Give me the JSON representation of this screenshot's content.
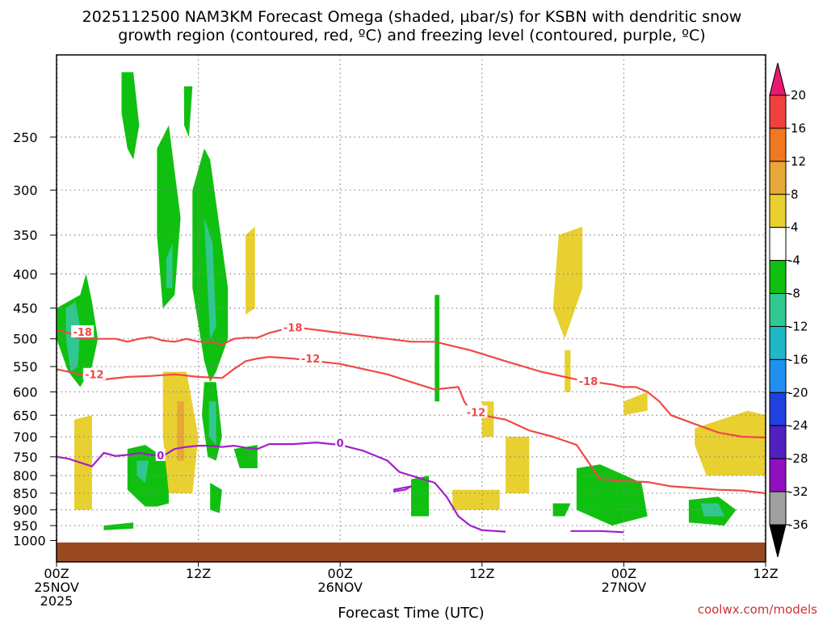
{
  "title_line1": "2025112500 NAM3KM Forecast Omega (shaded, µbar/s) for KSBN with dendritic snow",
  "title_line2": "growth region (contoured, red, ºC) and freezing level (contoured, purple, ºC)",
  "credit": "coolwx.com/models",
  "colors": {
    "isotherm": "#f04848",
    "freezing_level": "#a020c8",
    "ground": "#9a4a22",
    "grid": "#888888"
  },
  "chart_data": {
    "type": "heatmap",
    "title": "2025112500 NAM3KM Forecast Omega (shaded, µbar/s) for KSBN with dendritic snow growth region (contoured, red, ºC) and freezing level (contoured, purple, ºC)",
    "xlabel": "Forecast Time (UTC)",
    "ylabel": "",
    "x_range_hours": [
      0,
      60
    ],
    "y_range_hpa": [
      1000,
      200
    ],
    "y_scale": "log",
    "grid": true,
    "x_ticks": [
      {
        "hour": 0,
        "line1": "00Z",
        "line2": "25NOV",
        "line3": "2025"
      },
      {
        "hour": 12,
        "line1": "12Z",
        "line2": "",
        "line3": ""
      },
      {
        "hour": 24,
        "line1": "00Z",
        "line2": "26NOV",
        "line3": ""
      },
      {
        "hour": 36,
        "line1": "12Z",
        "line2": "",
        "line3": ""
      },
      {
        "hour": 48,
        "line1": "00Z",
        "line2": "27NOV",
        "line3": ""
      },
      {
        "hour": 60,
        "line1": "12Z",
        "line2": "",
        "line3": ""
      }
    ],
    "y_ticks": [
      250,
      300,
      350,
      400,
      450,
      500,
      550,
      600,
      650,
      700,
      750,
      800,
      850,
      900,
      950,
      1000
    ],
    "colorbar": {
      "unit": "µbar/s",
      "labels": [
        "20",
        "16",
        "12",
        "8",
        "4",
        "-4",
        "-8",
        "-12",
        "-16",
        "-20",
        "-24",
        "-28",
        "-32",
        "-36"
      ],
      "colors": [
        "#e8196e",
        "#f04040",
        "#f07820",
        "#e8a838",
        "#e8d030",
        "#ffffff",
        "#10c010",
        "#30c890",
        "#20b8c8",
        "#2090f0",
        "#2040e0",
        "#5020c0",
        "#9010c0",
        "#a0a0a0",
        "#000000"
      ]
    },
    "omega_regions": [
      {
        "category": "-8",
        "t": [
          0.0,
          2.0,
          2.5,
          3.0,
          3.5,
          3.0,
          2.0,
          1.0,
          0.0
        ],
        "p": [
          450,
          430,
          400,
          440,
          500,
          550,
          590,
          560,
          500
        ]
      },
      {
        "category": "-12",
        "t": [
          0.8,
          1.6,
          2.0,
          1.8,
          1.2,
          0.8
        ],
        "p": [
          450,
          440,
          480,
          550,
          560,
          500
        ]
      },
      {
        "category": "-8",
        "t": [
          5.5,
          6.5,
          7.0,
          6.5,
          6.0,
          5.5
        ],
        "p": [
          200,
          200,
          240,
          270,
          260,
          230
        ]
      },
      {
        "category": "-8",
        "t": [
          8.5,
          9.5,
          10.5,
          10.0,
          9.0,
          8.5
        ],
        "p": [
          260,
          240,
          330,
          430,
          450,
          350
        ]
      },
      {
        "category": "-12",
        "t": [
          9.3,
          9.8,
          9.8,
          9.3
        ],
        "p": [
          380,
          360,
          420,
          420
        ]
      },
      {
        "category": "-8",
        "t": [
          10.8,
          11.5,
          11.2,
          10.8
        ],
        "p": [
          210,
          210,
          250,
          240
        ]
      },
      {
        "category": "-8",
        "t": [
          11.5,
          12.5,
          13.0,
          14.5,
          14.5,
          13.5,
          13.0,
          12.5,
          11.5
        ],
        "p": [
          300,
          260,
          270,
          420,
          500,
          560,
          580,
          540,
          420
        ]
      },
      {
        "category": "-12",
        "t": [
          12.5,
          13.2,
          13.5,
          13.0
        ],
        "p": [
          330,
          360,
          480,
          500
        ]
      },
      {
        "category": "-8",
        "t": [
          12.5,
          13.5,
          14.0,
          13.5,
          12.8,
          12.3
        ],
        "p": [
          580,
          580,
          700,
          760,
          750,
          650
        ]
      },
      {
        "category": "-12",
        "t": [
          12.9,
          13.5,
          13.5,
          12.9
        ],
        "p": [
          620,
          620,
          720,
          700
        ]
      },
      {
        "category": "-8",
        "t": [
          6.0,
          7.5,
          9.5,
          9.5,
          8.5,
          7.5,
          6.0
        ],
        "p": [
          730,
          720,
          760,
          880,
          890,
          890,
          840
        ]
      },
      {
        "category": "-12",
        "t": [
          6.8,
          7.8,
          7.5,
          6.8
        ],
        "p": [
          760,
          760,
          820,
          800
        ]
      },
      {
        "category": "-8",
        "t": [
          13.0,
          14.0,
          13.8,
          13.0
        ],
        "p": [
          820,
          840,
          910,
          900
        ]
      },
      {
        "category": "-8",
        "t": [
          15.0,
          17.0,
          17.0,
          15.5
        ],
        "p": [
          730,
          720,
          780,
          780
        ]
      },
      {
        "category": "-8",
        "t": [
          4.0,
          6.5,
          6.5,
          4.0
        ],
        "p": [
          950,
          940,
          960,
          965
        ]
      },
      {
        "category": "-8",
        "t": [
          32.0,
          32.4,
          32.4,
          32.0
        ],
        "p": [
          430,
          430,
          620,
          620
        ]
      },
      {
        "category": "-8",
        "t": [
          30.0,
          31.5,
          31.5,
          30.0
        ],
        "p": [
          810,
          800,
          920,
          920
        ]
      },
      {
        "category": "-8",
        "t": [
          44.0,
          46.0,
          49.5,
          50.0,
          47.0,
          44.0
        ],
        "p": [
          780,
          770,
          820,
          920,
          950,
          900
        ]
      },
      {
        "category": "-8",
        "t": [
          53.5,
          56.0,
          57.5,
          56.5,
          53.5
        ],
        "p": [
          870,
          860,
          900,
          950,
          940
        ]
      },
      {
        "category": "-12",
        "t": [
          54.5,
          56.0,
          56.5,
          54.8
        ],
        "p": [
          880,
          880,
          920,
          920
        ]
      },
      {
        "category": "-8",
        "t": [
          42.0,
          43.5,
          43.0,
          42.0
        ],
        "p": [
          880,
          880,
          920,
          920
        ]
      },
      {
        "category": "4",
        "t": [
          1.5,
          3.0,
          3.0,
          1.5
        ],
        "p": [
          660,
          650,
          900,
          900
        ]
      },
      {
        "category": "4",
        "t": [
          9.0,
          11.0,
          12.0,
          11.5,
          9.5,
          9.0
        ],
        "p": [
          560,
          560,
          700,
          850,
          850,
          700
        ]
      },
      {
        "category": "8",
        "t": [
          10.2,
          10.8,
          10.8,
          10.2
        ],
        "p": [
          620,
          620,
          760,
          760
        ]
      },
      {
        "category": "4",
        "t": [
          16.0,
          16.8,
          16.8,
          16.0
        ],
        "p": [
          350,
          340,
          450,
          460
        ]
      },
      {
        "category": "4",
        "t": [
          42.5,
          44.5,
          44.5,
          43.0,
          42.0
        ],
        "p": [
          350,
          340,
          420,
          500,
          450
        ]
      },
      {
        "category": "4",
        "t": [
          43.0,
          43.5,
          43.5,
          43.0
        ],
        "p": [
          520,
          520,
          600,
          600
        ]
      },
      {
        "category": "4",
        "t": [
          48.0,
          50.0,
          50.0,
          48.0
        ],
        "p": [
          620,
          600,
          640,
          650
        ]
      },
      {
        "category": "4",
        "t": [
          54.0,
          58.5,
          60.0,
          60.0,
          55.0,
          54.0
        ],
        "p": [
          680,
          640,
          650,
          800,
          800,
          720
        ]
      },
      {
        "category": "4",
        "t": [
          36.0,
          37.0,
          37.0,
          36.0
        ],
        "p": [
          620,
          620,
          700,
          700
        ]
      },
      {
        "category": "4",
        "t": [
          38.0,
          40.0,
          40.0,
          38.0
        ],
        "p": [
          700,
          700,
          850,
          850
        ]
      },
      {
        "category": "4",
        "t": [
          33.5,
          37.5,
          37.5,
          33.5
        ],
        "p": [
          840,
          840,
          900,
          900
        ]
      }
    ],
    "isotherm_minus18": {
      "label": "-18",
      "t": [
        0,
        1,
        2,
        3,
        4,
        5,
        6,
        7,
        8,
        9,
        10,
        11,
        12,
        13,
        14,
        15,
        16,
        17,
        18,
        20,
        24,
        28,
        30,
        32,
        35,
        38,
        41,
        44,
        47,
        48,
        49,
        50,
        51,
        52,
        54,
        56,
        58,
        60
      ],
      "p": [
        485,
        490,
        500,
        500,
        500,
        500,
        505,
        500,
        497,
        503,
        505,
        500,
        505,
        505,
        510,
        500,
        498,
        498,
        490,
        480,
        490,
        500,
        505,
        505,
        520,
        540,
        560,
        575,
        585,
        590,
        590,
        600,
        620,
        650,
        670,
        690,
        700,
        702
      ]
    },
    "isotherm_minus12": {
      "label": "-12",
      "t": [
        0,
        2,
        4,
        6,
        8,
        10,
        12,
        14,
        15,
        16,
        17,
        18,
        20,
        24,
        28,
        30,
        32,
        34,
        34.5,
        35,
        36,
        38,
        40,
        42,
        44,
        46,
        47,
        48,
        50,
        52,
        54,
        56,
        58,
        60
      ],
      "p": [
        555,
        565,
        575,
        570,
        568,
        565,
        570,
        572,
        555,
        540,
        535,
        532,
        535,
        545,
        565,
        580,
        595,
        590,
        620,
        640,
        650,
        660,
        685,
        700,
        720,
        810,
        812,
        815,
        818,
        830,
        835,
        840,
        842,
        850
      ]
    },
    "freezing_level": {
      "label": "0",
      "t": [
        0,
        1,
        2,
        3,
        4,
        5,
        6,
        7,
        8,
        9,
        10,
        11,
        12,
        13,
        14,
        15,
        16,
        17,
        18,
        20,
        22,
        24,
        26,
        28,
        29,
        30,
        31,
        32,
        33,
        34,
        35,
        36,
        38
      ],
      "p": [
        750,
        755,
        765,
        775,
        740,
        748,
        745,
        740,
        745,
        748,
        730,
        725,
        722,
        722,
        725,
        722,
        727,
        730,
        718,
        718,
        714,
        720,
        735,
        760,
        790,
        800,
        810,
        820,
        860,
        920,
        950,
        965,
        970
      ]
    },
    "freezing_level_segments": [
      {
        "t": [
          28.5,
          30.0,
          29.5,
          28.5
        ],
        "p": [
          840,
          830,
          840,
          845
        ]
      },
      {
        "t": [
          43.5,
          46.0,
          48.0
        ],
        "p": [
          968,
          968,
          972
        ]
      }
    ]
  }
}
